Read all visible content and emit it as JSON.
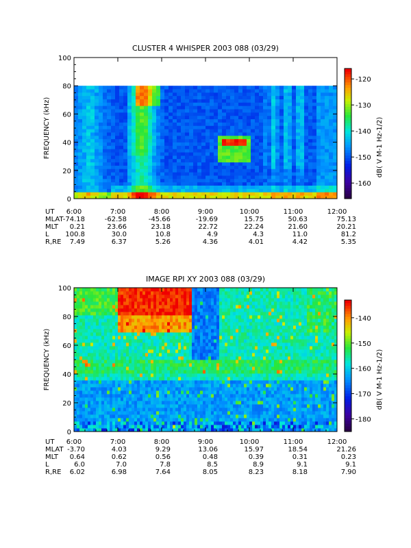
{
  "chart_data": [
    {
      "type": "heatmap",
      "title": "CLUSTER 4 WHISPER 2003 088 (03/29)",
      "ylabel": "FREQUENCY (kHz)",
      "ylim": [
        0,
        100
      ],
      "yticks": [
        "0",
        "20",
        "40",
        "60",
        "80",
        "100"
      ],
      "data_ymax": 80,
      "xlim": [
        "6:00",
        "12:00"
      ],
      "colorbar": {
        "label": "dB( V M⁻¹ Hz⁻¹ᐟ²)",
        "label_plain": "dB( V M-1 Hz-1/2)",
        "range": [
          -166,
          -116
        ],
        "ticks": [
          "-120",
          "-130",
          "-140",
          "-150",
          "-160"
        ],
        "tick_values": [
          -120,
          -130,
          -140,
          -150,
          -160
        ]
      },
      "ephemeris": {
        "row_labels": [
          "UT",
          "MLAT",
          "MLT",
          "L",
          "R,RE"
        ],
        "columns": [
          [
            "6:00",
            "-74.18",
            "0.21",
            "100.8",
            "7.49"
          ],
          [
            "7:00",
            "-62.58",
            "23.66",
            "30.0",
            "6.37"
          ],
          [
            "8:00",
            "-45.66",
            "23.18",
            "10.8",
            "5.26"
          ],
          [
            "9:00",
            "-19.69",
            "22.72",
            "4.9",
            "4.36"
          ],
          [
            "10:00",
            "15.75",
            "22.24",
            "4.3",
            "4.01"
          ],
          [
            "11:00",
            "50.63",
            "21.60",
            "11.0",
            "4.42"
          ],
          [
            "12:00",
            "75.13",
            "20.21",
            "81.2",
            "5.35"
          ]
        ]
      },
      "features": {
        "data_gaps_hours": [
          10.2,
          11.55
        ],
        "intense_emission": "chorus/UHR bands around 7:30-8:00 and near 9:40-10:00"
      }
    },
    {
      "type": "heatmap",
      "title": "IMAGE RPI XY 2003 088 (03/29)",
      "ylabel": "FREQUENCY (kHz)",
      "ylim": [
        0,
        100
      ],
      "yticks": [
        "0",
        "20",
        "40",
        "60",
        "80",
        "100"
      ],
      "data_ymax": 100,
      "xlim": [
        "6:00",
        "12:00"
      ],
      "colorbar": {
        "label": "dB( V M⁻¹ Hz⁻¹ᐟ²)",
        "label_plain": "dB( V M-1 Hz-1/2)",
        "range": [
          -185,
          -133
        ],
        "ticks": [
          "-140",
          "-150",
          "-160",
          "-170",
          "-180"
        ],
        "tick_values": [
          -140,
          -150,
          -160,
          -170,
          -180
        ]
      },
      "ephemeris": {
        "row_labels": [
          "UT",
          "MLAT",
          "MLT",
          "L",
          "R,RE"
        ],
        "columns": [
          [
            "6:00",
            "-3.70",
            "0.64",
            "6.0",
            "6.02"
          ],
          [
            "7:00",
            "4.03",
            "0.62",
            "7.0",
            "6.98"
          ],
          [
            "8:00",
            "9.29",
            "0.56",
            "7.8",
            "7.64"
          ],
          [
            "9:00",
            "13.06",
            "0.48",
            "8.5",
            "8.05"
          ],
          [
            "10:00",
            "15.97",
            "0.39",
            "8.9",
            "8.23"
          ],
          [
            "11:00",
            "18.54",
            "0.31",
            "9.1",
            "8.18"
          ],
          [
            "12:00",
            "21.26",
            "0.23",
            "9.1",
            "7.90"
          ]
        ]
      }
    }
  ]
}
